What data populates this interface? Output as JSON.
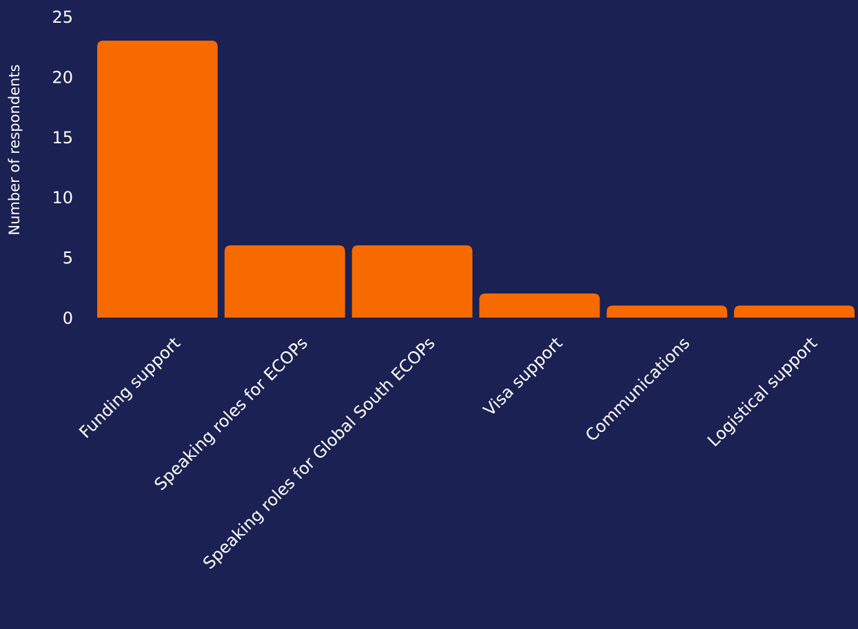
{
  "chart_data": {
    "type": "bar",
    "title": "",
    "xlabel": "",
    "ylabel": "Number of respondents",
    "categories": [
      "Funding support",
      "Speaking roles for ECOPs",
      "Speaking roles for Global South ECOPs",
      "Visa support",
      "Communications",
      "Logistical support"
    ],
    "values": [
      23,
      6,
      6,
      2,
      1,
      1
    ],
    "ylim": [
      0,
      25
    ],
    "yticks": [
      "0",
      "5",
      "10",
      "15",
      "20",
      "25"
    ],
    "grid": false,
    "legend": "none",
    "bar_color": "#f76a00",
    "background_color": "#1b2152",
    "text_color": "#ffffff"
  }
}
